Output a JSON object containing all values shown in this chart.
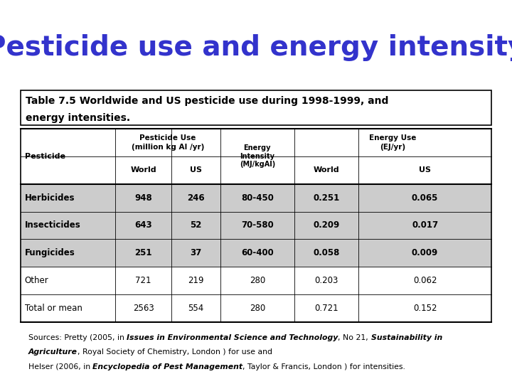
{
  "title": "Pesticide use and energy intensity",
  "title_color": "#3333CC",
  "subtitle_line1": "Table 7.5 Worldwide and US pesticide use during 1998-1999, and",
  "subtitle_line2": "energy intensities.",
  "rows": [
    [
      "Herbicides",
      "948",
      "246",
      "80-450",
      "0.251",
      "0.065"
    ],
    [
      "Insecticides",
      "643",
      "52",
      "70-580",
      "0.209",
      "0.017"
    ],
    [
      "Fungicides",
      "251",
      "37",
      "60-400",
      "0.058",
      "0.009"
    ],
    [
      "Other",
      "721",
      "219",
      "280",
      "0.203",
      "0.062"
    ],
    [
      "Total or mean",
      "2563",
      "554",
      "280",
      "0.721",
      "0.152"
    ]
  ],
  "bg_color": "#FFFFFF",
  "shade_color": "#CCCCCC",
  "title_fontsize": 28,
  "subtitle_fontsize": 10,
  "header_fontsize": 8,
  "data_fontsize": 8.5
}
